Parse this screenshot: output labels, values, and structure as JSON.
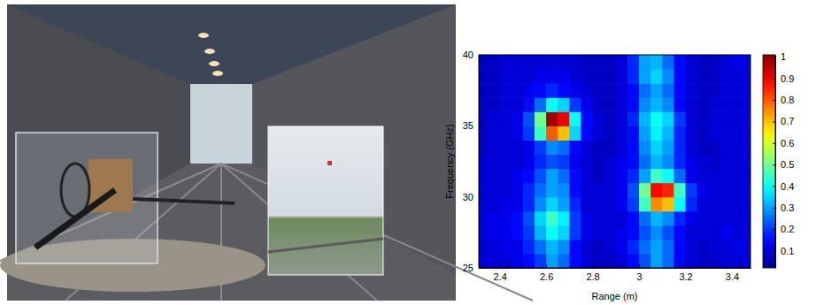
{
  "chart_data": {
    "type": "heatmap",
    "x_label": "Range (m)",
    "y_label": "Frequency (GHz)",
    "x": [
      2.325,
      2.375,
      2.425,
      2.475,
      2.525,
      2.575,
      2.625,
      2.675,
      2.725,
      2.775,
      2.825,
      2.875,
      2.925,
      2.975,
      3.025,
      3.075,
      3.125,
      3.175,
      3.225,
      3.275,
      3.325,
      3.375,
      3.425,
      3.475
    ],
    "y": [
      25.5,
      26.5,
      27.5,
      28.5,
      29.5,
      30.5,
      31.5,
      32.5,
      33.5,
      34.5,
      35.5,
      36.5,
      37.5,
      38.5,
      39.5
    ],
    "z": [
      [
        0.1,
        0.1,
        0.1,
        0.12,
        0.15,
        0.2,
        0.3,
        0.25,
        0.15,
        0.1,
        0.08,
        0.08,
        0.1,
        0.15,
        0.22,
        0.3,
        0.25,
        0.15,
        0.1,
        0.08,
        0.08,
        0.1,
        0.1,
        0.1
      ],
      [
        0.1,
        0.1,
        0.12,
        0.12,
        0.18,
        0.25,
        0.32,
        0.28,
        0.15,
        0.1,
        0.08,
        0.1,
        0.12,
        0.18,
        0.25,
        0.3,
        0.25,
        0.15,
        0.1,
        0.08,
        0.1,
        0.1,
        0.12,
        0.1
      ],
      [
        0.1,
        0.12,
        0.12,
        0.15,
        0.2,
        0.32,
        0.4,
        0.35,
        0.2,
        0.12,
        0.1,
        0.1,
        0.12,
        0.15,
        0.22,
        0.28,
        0.22,
        0.15,
        0.1,
        0.1,
        0.1,
        0.12,
        0.1,
        0.1
      ],
      [
        0.1,
        0.12,
        0.12,
        0.15,
        0.22,
        0.35,
        0.45,
        0.38,
        0.2,
        0.12,
        0.1,
        0.1,
        0.1,
        0.15,
        0.25,
        0.32,
        0.28,
        0.18,
        0.12,
        0.1,
        0.1,
        0.1,
        0.1,
        0.1
      ],
      [
        0.1,
        0.1,
        0.12,
        0.12,
        0.18,
        0.28,
        0.35,
        0.3,
        0.18,
        0.1,
        0.1,
        0.1,
        0.12,
        0.2,
        0.45,
        0.75,
        0.7,
        0.4,
        0.18,
        0.1,
        0.1,
        0.1,
        0.1,
        0.1
      ],
      [
        0.1,
        0.1,
        0.1,
        0.12,
        0.18,
        0.25,
        0.3,
        0.28,
        0.15,
        0.1,
        0.1,
        0.1,
        0.12,
        0.22,
        0.5,
        0.88,
        0.85,
        0.45,
        0.2,
        0.12,
        0.1,
        0.1,
        0.1,
        0.1
      ],
      [
        0.1,
        0.1,
        0.1,
        0.12,
        0.15,
        0.22,
        0.3,
        0.25,
        0.15,
        0.1,
        0.08,
        0.1,
        0.12,
        0.18,
        0.3,
        0.45,
        0.4,
        0.25,
        0.12,
        0.1,
        0.1,
        0.1,
        0.1,
        0.1
      ],
      [
        0.1,
        0.1,
        0.1,
        0.1,
        0.12,
        0.18,
        0.22,
        0.2,
        0.12,
        0.1,
        0.08,
        0.1,
        0.12,
        0.15,
        0.25,
        0.32,
        0.28,
        0.18,
        0.12,
        0.1,
        0.08,
        0.1,
        0.1,
        0.1
      ],
      [
        0.08,
        0.1,
        0.1,
        0.1,
        0.12,
        0.2,
        0.28,
        0.25,
        0.15,
        0.1,
        0.08,
        0.08,
        0.1,
        0.15,
        0.28,
        0.35,
        0.3,
        0.18,
        0.1,
        0.08,
        0.08,
        0.1,
        0.1,
        0.1
      ],
      [
        0.08,
        0.1,
        0.1,
        0.12,
        0.2,
        0.45,
        0.8,
        0.7,
        0.35,
        0.15,
        0.1,
        0.08,
        0.1,
        0.15,
        0.3,
        0.38,
        0.32,
        0.18,
        0.1,
        0.08,
        0.1,
        0.1,
        0.1,
        0.1
      ],
      [
        0.08,
        0.1,
        0.1,
        0.12,
        0.22,
        0.5,
        0.98,
        0.9,
        0.4,
        0.15,
        0.1,
        0.08,
        0.1,
        0.18,
        0.32,
        0.4,
        0.35,
        0.2,
        0.1,
        0.08,
        0.1,
        0.1,
        0.1,
        0.1
      ],
      [
        0.08,
        0.08,
        0.1,
        0.1,
        0.15,
        0.25,
        0.4,
        0.35,
        0.2,
        0.12,
        0.08,
        0.08,
        0.1,
        0.15,
        0.28,
        0.32,
        0.28,
        0.15,
        0.1,
        0.08,
        0.1,
        0.1,
        0.1,
        0.1
      ],
      [
        0.08,
        0.08,
        0.1,
        0.1,
        0.12,
        0.15,
        0.18,
        0.15,
        0.12,
        0.1,
        0.08,
        0.08,
        0.1,
        0.15,
        0.25,
        0.3,
        0.25,
        0.15,
        0.1,
        0.08,
        0.08,
        0.1,
        0.1,
        0.1
      ],
      [
        0.08,
        0.08,
        0.1,
        0.1,
        0.1,
        0.12,
        0.12,
        0.12,
        0.1,
        0.08,
        0.08,
        0.08,
        0.1,
        0.18,
        0.3,
        0.35,
        0.28,
        0.15,
        0.1,
        0.08,
        0.08,
        0.1,
        0.1,
        0.1
      ],
      [
        0.08,
        0.08,
        0.1,
        0.1,
        0.1,
        0.1,
        0.1,
        0.1,
        0.1,
        0.08,
        0.08,
        0.08,
        0.1,
        0.18,
        0.3,
        0.32,
        0.25,
        0.15,
        0.1,
        0.08,
        0.08,
        0.1,
        0.12,
        0.1
      ]
    ],
    "xlim": [
      2.31,
      3.48
    ],
    "ylim": [
      25,
      40
    ],
    "xticks": [
      2.4,
      2.6,
      2.8,
      3,
      3.2,
      3.4
    ],
    "yticks": [
      25,
      30,
      35,
      40
    ],
    "zlim": [
      0.02,
      1.01
    ],
    "zticks": [
      0.1,
      0.2,
      0.3,
      0.4,
      0.5,
      0.6,
      0.7,
      0.8,
      0.9,
      1
    ]
  }
}
